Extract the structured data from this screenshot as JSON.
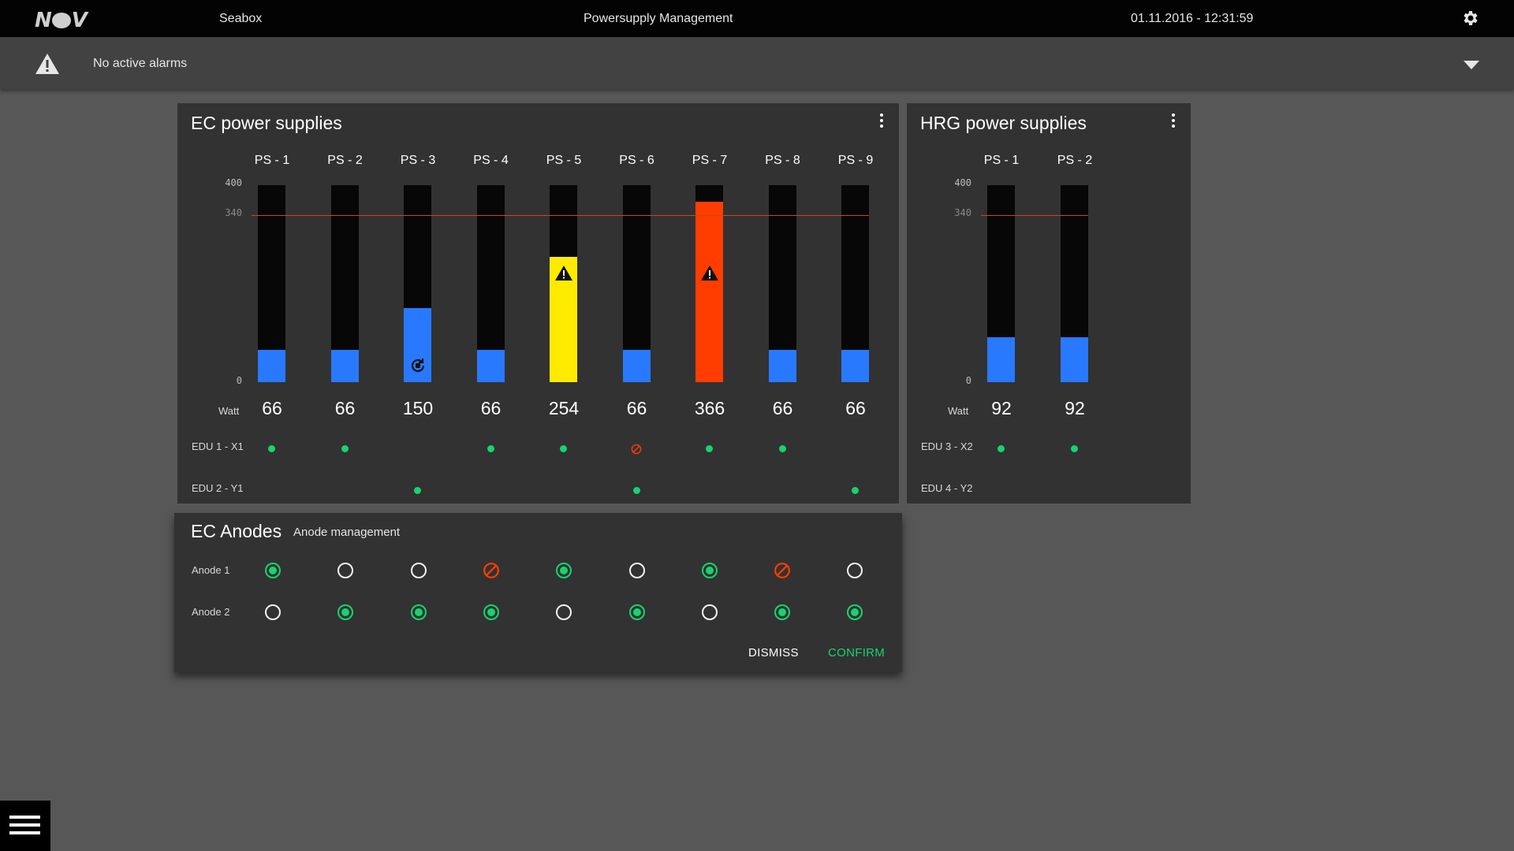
{
  "header": {
    "logo": "NOV",
    "app_name": "Seabox",
    "page_title": "Powersupply Management",
    "datetime": "01.11.2016 - 12:31:59",
    "settings_icon": "gear-icon"
  },
  "alarms": {
    "icon": "warning-icon",
    "text": "No active alarms",
    "expand_icon": "chevron-down-icon"
  },
  "colors": {
    "normal": "#2979ff",
    "warning": "#ffeb00",
    "critical": "#ff3d00",
    "ok": "#16d46e",
    "limit": "#d2431a"
  },
  "ec_panel": {
    "title": "EC power supplies",
    "axis": {
      "max": "400",
      "limit": "340",
      "min": "0"
    },
    "axis_max": 400,
    "limit_value": 340,
    "watt_label": "Watt",
    "edu_rows": [
      "EDU 1 - X1",
      "EDU 2 - Y1"
    ],
    "supplies": [
      {
        "label": "PS - 1",
        "watt": "66",
        "value": 66,
        "state": "normal",
        "edu1": "ok",
        "edu2": "none"
      },
      {
        "label": "PS - 2",
        "watt": "66",
        "value": 66,
        "state": "normal",
        "edu1": "ok",
        "edu2": "none"
      },
      {
        "label": "PS - 3",
        "watt": "150",
        "value": 150,
        "state": "normal",
        "icon": "refresh",
        "edu1": "none",
        "edu2": "ok"
      },
      {
        "label": "PS - 4",
        "watt": "66",
        "value": 66,
        "state": "normal",
        "edu1": "ok",
        "edu2": "none"
      },
      {
        "label": "PS - 5",
        "watt": "254",
        "value": 254,
        "state": "warning",
        "icon": "warning",
        "edu1": "ok",
        "edu2": "none"
      },
      {
        "label": "PS - 6",
        "watt": "66",
        "value": 66,
        "state": "normal",
        "edu1": "blocked",
        "edu2": "ok"
      },
      {
        "label": "PS - 7",
        "watt": "366",
        "value": 366,
        "state": "critical",
        "icon": "warning",
        "edu1": "ok",
        "edu2": "none"
      },
      {
        "label": "PS - 8",
        "watt": "66",
        "value": 66,
        "state": "normal",
        "edu1": "ok",
        "edu2": "none"
      },
      {
        "label": "PS - 9",
        "watt": "66",
        "value": 66,
        "state": "normal",
        "edu1": "none",
        "edu2": "ok"
      }
    ]
  },
  "hrg_panel": {
    "title": "HRG power supplies",
    "axis": {
      "max": "400",
      "limit": "340",
      "min": "0"
    },
    "watt_label": "Watt",
    "edu_rows": [
      "EDU 3 - X2",
      "EDU 4 - Y2"
    ],
    "supplies": [
      {
        "label": "PS - 1",
        "watt": "92",
        "value": 92,
        "state": "normal",
        "edu1": "ok",
        "edu2": "none"
      },
      {
        "label": "PS - 2",
        "watt": "92",
        "value": 92,
        "state": "normal",
        "edu1": "ok",
        "edu2": "none"
      }
    ]
  },
  "anodes": {
    "title": "EC Anodes",
    "subtitle": "Anode management",
    "rows": [
      {
        "label": "Anode 1",
        "states": [
          "on",
          "off",
          "off",
          "blocked",
          "on",
          "off",
          "on",
          "blocked",
          "off"
        ]
      },
      {
        "label": "Anode 2",
        "states": [
          "off",
          "on",
          "on",
          "on",
          "off",
          "on",
          "off",
          "on",
          "on"
        ]
      }
    ],
    "dismiss_label": "DISMISS",
    "confirm_label": "CONFIRM"
  },
  "menu": {
    "icon": "hamburger-menu-icon"
  }
}
